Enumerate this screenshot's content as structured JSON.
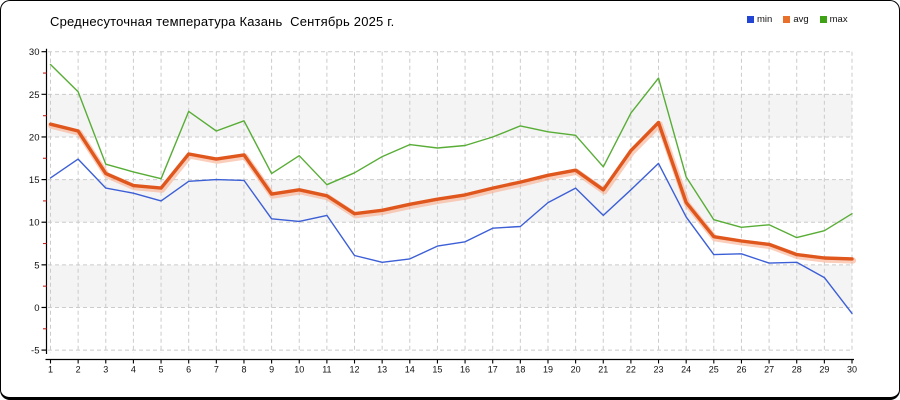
{
  "header": {
    "title": "Среднесуточная температура Казань  Сентябрь 2025 г."
  },
  "legend": {
    "position": "top-right",
    "items": [
      {
        "label": "min",
        "color": "#2345d4"
      },
      {
        "label": "avg",
        "color": "#e8702a"
      },
      {
        "label": "max",
        "color": "#3da315"
      }
    ]
  },
  "chart_data": {
    "type": "line",
    "title": "Среднесуточная температура Казань  Сентябрь 2025 г.",
    "xlabel": "",
    "ylabel": "",
    "categories": [
      1,
      2,
      3,
      4,
      5,
      6,
      7,
      8,
      9,
      10,
      11,
      12,
      13,
      14,
      15,
      16,
      17,
      18,
      19,
      20,
      21,
      22,
      23,
      24,
      25,
      26,
      27,
      28,
      29,
      30
    ],
    "series": [
      {
        "name": "min",
        "color": "#3c5fd6",
        "line_width": 1.4,
        "values": [
          15.2,
          17.4,
          14.0,
          13.4,
          12.5,
          14.8,
          15.0,
          14.9,
          10.4,
          10.1,
          10.8,
          6.1,
          5.3,
          5.7,
          7.2,
          7.7,
          9.3,
          9.5,
          12.3,
          14.0,
          10.8,
          13.8,
          16.9,
          10.6,
          6.2,
          6.3,
          5.2,
          5.3,
          3.5,
          -0.7
        ]
      },
      {
        "name": "avg",
        "color": "#e0571d",
        "halo_color": "#f6ad8d",
        "line_width": 3.4,
        "values": [
          21.5,
          20.7,
          15.7,
          14.3,
          14.0,
          18.0,
          17.4,
          17.9,
          13.3,
          13.8,
          13.1,
          11.0,
          11.4,
          12.1,
          12.7,
          13.2,
          14.0,
          14.7,
          15.5,
          16.1,
          13.8,
          18.4,
          21.7,
          12.3,
          8.3,
          7.8,
          7.4,
          6.2,
          5.8,
          5.7
        ]
      },
      {
        "name": "max",
        "color": "#58ad36",
        "line_width": 1.4,
        "values": [
          28.5,
          25.3,
          16.8,
          15.9,
          15.1,
          23.0,
          20.7,
          21.9,
          15.7,
          17.8,
          14.4,
          15.8,
          17.7,
          19.1,
          18.7,
          19.0,
          20.0,
          21.3,
          20.6,
          20.2,
          16.5,
          22.8,
          26.9,
          15.3,
          10.3,
          9.4,
          9.7,
          8.2,
          9.0,
          11.0
        ]
      }
    ],
    "ylim": [
      -5,
      30
    ],
    "y_ticks": [
      30,
      25,
      20,
      15,
      10,
      5,
      0,
      -5
    ],
    "y_minor_step": 2.5,
    "grid": true,
    "shaded_bands": [
      [
        20,
        25
      ],
      [
        10,
        15
      ],
      [
        0,
        5
      ]
    ],
    "band_color": "#f4f4f4",
    "grid_color": "#cbcbcb",
    "axis_color": "#000000",
    "minor_tick_color": "#cc2222",
    "legend_position": "top-right"
  }
}
